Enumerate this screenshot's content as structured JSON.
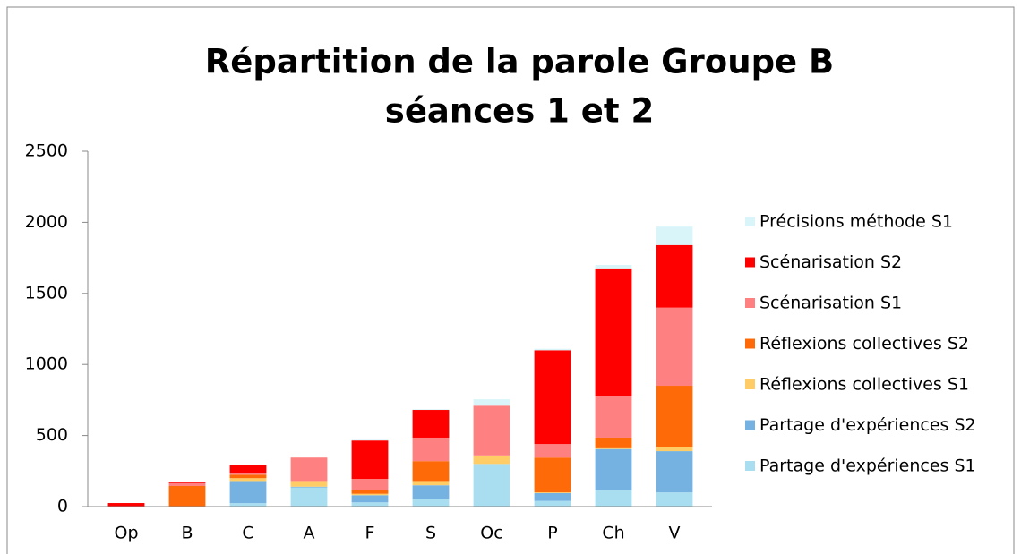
{
  "chart_data": {
    "type": "stacked_bar",
    "title": "Répartition de la parole Groupe B",
    "subtitle": "séances 1 et 2",
    "categories": [
      "Op",
      "B",
      "C",
      "A",
      "F",
      "S",
      "Oc",
      "P",
      "Ch",
      "V"
    ],
    "series": [
      {
        "name": "Partage d'expériences S1",
        "color": "#a9ddf0",
        "values": [
          0,
          0,
          25,
          135,
          30,
          55,
          300,
          40,
          115,
          100
        ]
      },
      {
        "name": "Partage d'expériences S2",
        "color": "#75b2e2",
        "values": [
          0,
          0,
          155,
          5,
          50,
          95,
          0,
          55,
          290,
          290
        ]
      },
      {
        "name": "Réflexions collectives S1",
        "color": "#ffcc66",
        "values": [
          0,
          0,
          20,
          40,
          10,
          30,
          60,
          5,
          5,
          30
        ]
      },
      {
        "name": "Réflexions collectives S2",
        "color": "#ff6a08",
        "values": [
          0,
          145,
          25,
          0,
          25,
          140,
          0,
          245,
          75,
          430
        ]
      },
      {
        "name": "Scénarisation S1",
        "color": "#ff8080",
        "values": [
          0,
          20,
          10,
          165,
          80,
          165,
          350,
          95,
          295,
          550
        ]
      },
      {
        "name": "Scénarisation S2",
        "color": "#ff0000",
        "values": [
          25,
          10,
          55,
          0,
          270,
          195,
          0,
          660,
          890,
          440
        ]
      },
      {
        "name": "Précisions méthode S1",
        "color": "#d9f5f9",
        "values": [
          0,
          0,
          0,
          0,
          5,
          5,
          45,
          10,
          30,
          130
        ]
      }
    ],
    "ylim": [
      0,
      2500
    ],
    "yticks": [
      0,
      500,
      1000,
      1500,
      2000,
      2500
    ],
    "grid": false,
    "legend": "right"
  }
}
